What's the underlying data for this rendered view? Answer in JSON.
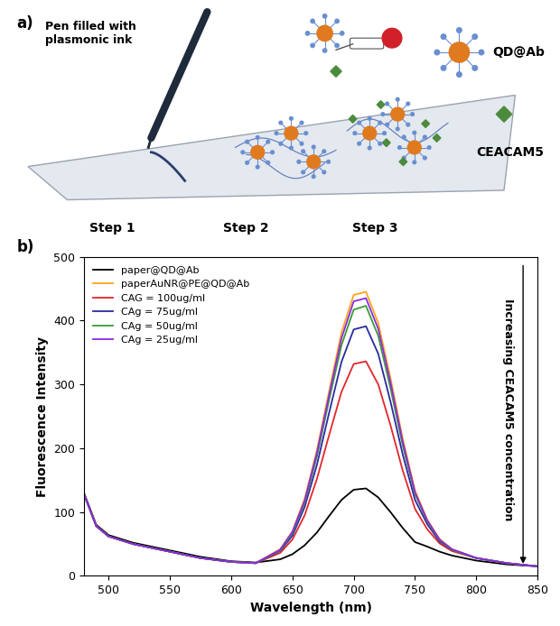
{
  "panel_a": {
    "label": "a)",
    "pen": "Pen filled with\nplasmonic ink",
    "steps": [
      "Step 1",
      "Step 2",
      "Step 3"
    ],
    "icons": [
      "QD@Ab",
      "CEACAM5"
    ]
  },
  "chart_data": {
    "type": "line",
    "panel_label": "b)",
    "x_label": "Wavelength (nm)",
    "y_label": "Fluorescence Intensity",
    "annotation": "Increasing CEACAM5 concentration",
    "x": [
      480,
      490,
      500,
      520,
      550,
      575,
      600,
      620,
      640,
      650,
      660,
      670,
      680,
      690,
      700,
      710,
      720,
      730,
      740,
      750,
      760,
      770,
      780,
      800,
      825,
      850
    ],
    "series": [
      {
        "name": "paper@QD@Ab",
        "color": "#000000",
        "values": [
          130,
          80,
          64,
          52,
          40,
          30,
          23,
          21,
          26,
          34,
          48,
          68,
          94,
          119,
          135,
          137,
          123,
          100,
          75,
          53,
          46,
          38,
          32,
          24,
          18,
          15
        ]
      },
      {
        "name": "paperAuNR@PE@QD@Ab",
        "color": "#ffa31a",
        "values": [
          128,
          78,
          62,
          50,
          38,
          28,
          22,
          20,
          42,
          70,
          121,
          197,
          290,
          381,
          440,
          445,
          396,
          310,
          215,
          134,
          88,
          58,
          42,
          28,
          20,
          15
        ]
      },
      {
        "name": "CAG = 100ug/ml",
        "color": "#e3262b",
        "values": [
          128,
          78,
          62,
          50,
          38,
          28,
          22,
          20,
          36,
          57,
          95,
          152,
          221,
          288,
          332,
          336,
          300,
          236,
          165,
          105,
          73,
          51,
          39,
          28,
          20,
          15
        ]
      },
      {
        "name": "CAg = 75ug/ml",
        "color": "#2a2aa0",
        "values": [
          128,
          78,
          62,
          50,
          38,
          28,
          22,
          20,
          39,
          63,
          108,
          174,
          256,
          335,
          386,
          391,
          348,
          273,
          190,
          119,
          81,
          54,
          41,
          28,
          20,
          15
        ]
      },
      {
        "name": "CAg = 50ug/ml",
        "color": "#3a9a3a",
        "values": [
          128,
          78,
          62,
          50,
          38,
          28,
          22,
          20,
          40,
          67,
          115,
          187,
          276,
          361,
          417,
          423,
          376,
          294,
          204,
          128,
          85,
          56,
          41,
          28,
          20,
          15
        ]
      },
      {
        "name": "CAg = 25ug/ml",
        "color": "#8a2be2",
        "values": [
          128,
          78,
          62,
          50,
          38,
          28,
          22,
          20,
          41,
          69,
          118,
          193,
          284,
          372,
          430,
          435,
          387,
          303,
          210,
          131,
          87,
          57,
          42,
          28,
          20,
          15
        ]
      }
    ],
    "xlim": [
      480,
      850
    ],
    "ylim": [
      0,
      500
    ],
    "xticks": [
      500,
      550,
      600,
      650,
      700,
      750,
      800,
      850
    ],
    "yticks": [
      0,
      100,
      200,
      300,
      400,
      500
    ],
    "legend": "upper left"
  }
}
